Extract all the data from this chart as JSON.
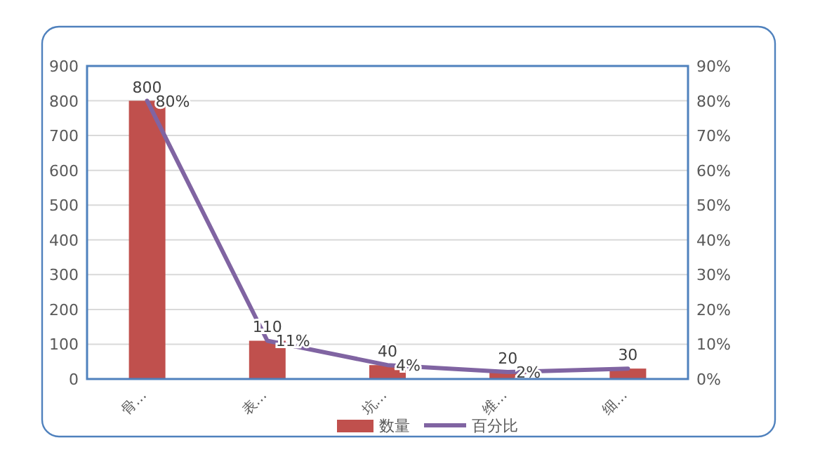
{
  "chart_data": {
    "type": "bar",
    "categories": [
      "骨…",
      "表…",
      "坑…",
      "维…",
      "细…"
    ],
    "series": [
      {
        "name": "数量",
        "color": "#c0504d",
        "values": [
          800,
          110,
          40,
          20,
          30
        ],
        "value_labels": [
          "800",
          "110",
          "40",
          "20",
          "30"
        ]
      },
      {
        "name": "百分比",
        "type": "line",
        "axis": "y2",
        "color": "#8064a2",
        "values": [
          80,
          11,
          4,
          2,
          3
        ],
        "value_labels": [
          "80%",
          "11%",
          "4%",
          "2%",
          null
        ]
      }
    ],
    "ylim": [
      0,
      900
    ],
    "yticks": [
      0,
      100,
      200,
      300,
      400,
      500,
      600,
      700,
      800,
      900
    ],
    "y2lim": [
      0,
      90
    ],
    "y2ticks": [
      {
        "value": 0,
        "label": "0%"
      },
      {
        "value": 10,
        "label": "10%"
      },
      {
        "value": 20,
        "label": "20%"
      },
      {
        "value": 30,
        "label": "30%"
      },
      {
        "value": 40,
        "label": "40%"
      },
      {
        "value": 50,
        "label": "50%"
      },
      {
        "value": 60,
        "label": "60%"
      },
      {
        "value": 70,
        "label": "70%"
      },
      {
        "value": 80,
        "label": "80%"
      },
      {
        "value": 90,
        "label": "90%"
      }
    ],
    "grid": "y",
    "legend": "bottom",
    "marker": "none",
    "line_style": "solid"
  }
}
